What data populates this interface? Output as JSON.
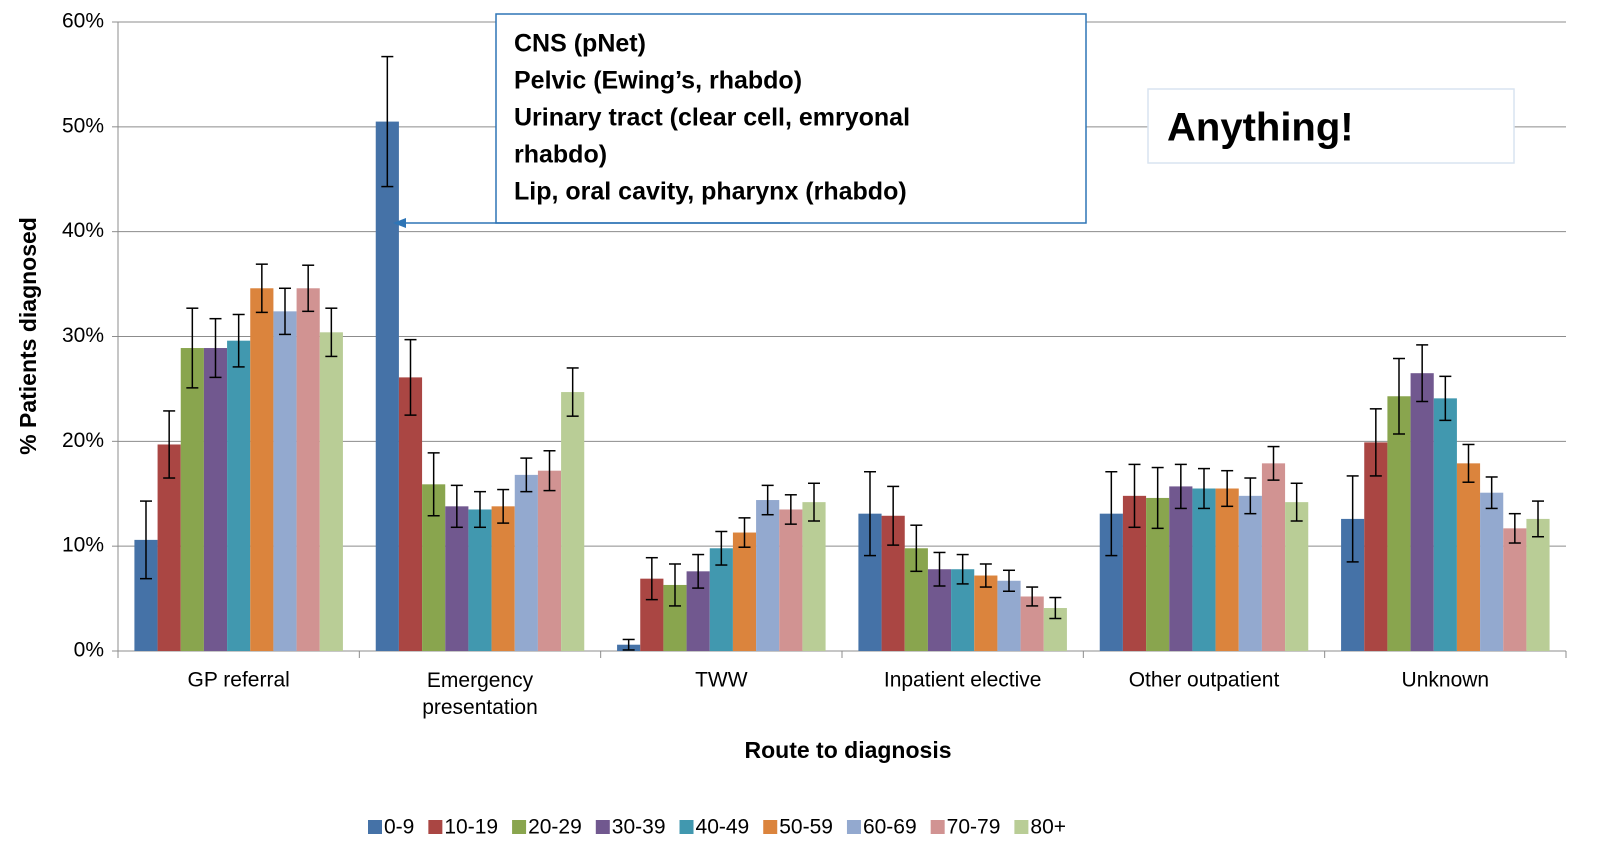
{
  "chart_data": {
    "type": "bar",
    "y_axis_label": "% Patients diagnosed",
    "x_axis_label": "Route to diagnosis",
    "categories": [
      "GP referral",
      "Emergency presentation",
      "TWW",
      "Inpatient elective",
      "Other outpatient",
      "Unknown"
    ],
    "series": [
      {
        "name": "0-9",
        "color": "#4572a7",
        "values": [
          10.6,
          50.5,
          0.6,
          13.1,
          13.1,
          12.6
        ],
        "errors": [
          3.7,
          6.2,
          0.5,
          4.0,
          4.0,
          4.1
        ]
      },
      {
        "name": "10-19",
        "color": "#aa4643",
        "values": [
          19.7,
          26.1,
          6.9,
          12.9,
          14.8,
          19.9
        ],
        "errors": [
          3.2,
          3.6,
          2.0,
          2.8,
          3.0,
          3.2
        ]
      },
      {
        "name": "20-29",
        "color": "#89a54e",
        "values": [
          28.9,
          15.9,
          6.3,
          9.8,
          14.6,
          24.3
        ],
        "errors": [
          3.8,
          3.0,
          2.0,
          2.2,
          2.9,
          3.6
        ]
      },
      {
        "name": "30-39",
        "color": "#71588f",
        "values": [
          28.9,
          13.8,
          7.6,
          7.8,
          15.7,
          26.5
        ],
        "errors": [
          2.8,
          2.0,
          1.6,
          1.6,
          2.1,
          2.7
        ]
      },
      {
        "name": "40-49",
        "color": "#4198af",
        "values": [
          29.6,
          13.5,
          9.8,
          7.8,
          15.5,
          24.1
        ],
        "errors": [
          2.5,
          1.7,
          1.6,
          1.4,
          1.9,
          2.1
        ]
      },
      {
        "name": "50-59",
        "color": "#db843d",
        "values": [
          34.6,
          13.8,
          11.3,
          7.2,
          15.5,
          17.9
        ],
        "errors": [
          2.3,
          1.6,
          1.4,
          1.1,
          1.7,
          1.8
        ]
      },
      {
        "name": "60-69",
        "color": "#93a9cf",
        "values": [
          32.4,
          16.8,
          14.4,
          6.7,
          14.8,
          15.1
        ],
        "errors": [
          2.2,
          1.6,
          1.4,
          1.0,
          1.7,
          1.5
        ]
      },
      {
        "name": "70-79",
        "color": "#d19392",
        "values": [
          34.6,
          17.2,
          13.5,
          5.2,
          17.9,
          11.7
        ],
        "errors": [
          2.2,
          1.9,
          1.4,
          0.9,
          1.6,
          1.4
        ]
      },
      {
        "name": "80+",
        "color": "#b9cd96",
        "values": [
          30.4,
          24.7,
          14.2,
          4.1,
          14.2,
          12.6
        ],
        "errors": [
          2.3,
          2.3,
          1.8,
          1.0,
          1.8,
          1.7
        ]
      }
    ],
    "ylim": [
      0,
      60
    ],
    "yticks": [
      {
        "value": 0,
        "label": "0%"
      },
      {
        "value": 10,
        "label": "10%"
      },
      {
        "value": 20,
        "label": "20%"
      },
      {
        "value": 30,
        "label": "30%"
      },
      {
        "value": 40,
        "label": "40%"
      },
      {
        "value": 50,
        "label": "50%"
      },
      {
        "value": 60,
        "label": "60%"
      }
    ],
    "grid": true,
    "legend": "bottom",
    "annotations": [
      {
        "lines": [
          "CNS (pNet)",
          "Pelvic (Ewing’s, rhabdo)",
          "Urinary tract (clear cell, emryonal",
          "rhabdo)",
          "Lip, oral cavity, pharynx (rhabdo)"
        ],
        "color": "#70106f"
      },
      {
        "lines": [
          "Anything!"
        ],
        "color": "#70106f"
      }
    ]
  }
}
